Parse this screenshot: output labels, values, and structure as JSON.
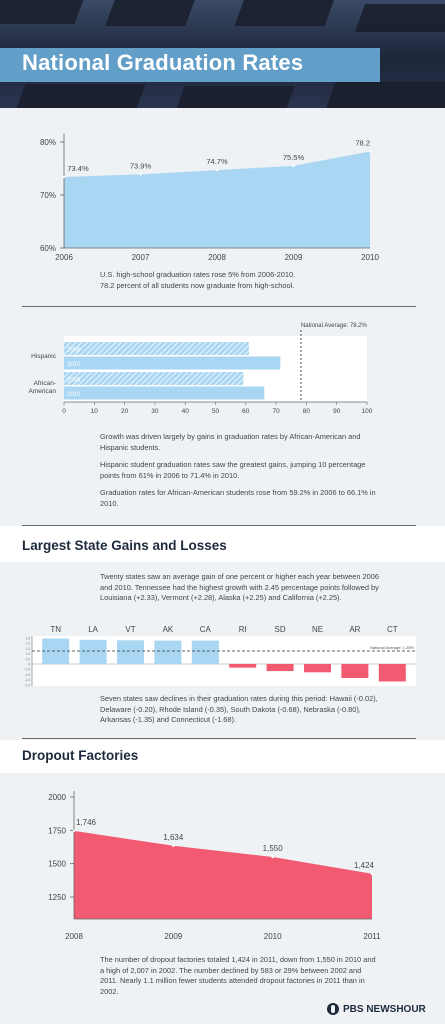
{
  "header": {
    "title": "National Graduation Rates"
  },
  "grad_caption": [
    "U.S. high-school graduation rates rose 5% from 2006-2010.",
    "78.2 percent of all students now graduate from high-school."
  ],
  "group_caption": [
    "Growth was driven largely by gains in graduation rates by African-American and Hispanic students.",
    "Hispanic student graduation rates saw the greatest gains, jumping 10 percentage points from 61% in 2006 to 71.4% in 2010.",
    "Graduation rates for African-American students rose from 59.2% in 2006 to 66.1% in 2010."
  ],
  "state_section": {
    "title": "Largest State Gains and Losses",
    "intro": "Twenty states saw an average gain of one percent or higher each year between 2006 and 2010. Tennessee had the highest growth with 2.45 percentage points followed by Louisiana (+2.33), Vermont (+2.28), Alaska (+2.25) and California (+2.25).",
    "outro": "Seven states saw declines in their graduation rates during this period: Hawaii (-0.02), Delaware (-0.20), Rhode Island (-0.35), South Dakota (-0.68), Nebraska (-0.80), Arkansas (-1.35) and Connecticut (-1.68)."
  },
  "dropout_section": {
    "title": "Dropout Factories",
    "caption": "The number of dropout factories totaled 1,424 in 2011, down from 1,550 in 2010 and a high of 2,007 in 2002. The number declined by 583 or 29% between 2002 and 2011. Nearly 1.1 million fewer students attended dropout factories in 2011 than in 2002."
  },
  "footer": {
    "brand": "PBS NEWSHOUR"
  },
  "colors": {
    "blue": "#a9d6f2",
    "red": "#f25a72",
    "navy": "#1d2a3b",
    "accent": "#e4352c"
  },
  "chart_data": [
    {
      "type": "area",
      "x": [
        2006,
        2007,
        2008,
        2009,
        2010
      ],
      "values": [
        73.4,
        73.9,
        74.7,
        75.5,
        78.2
      ],
      "data_labels": [
        "73.4%",
        "73.9%",
        "74.7%",
        "75.5%",
        "78.2"
      ],
      "yticks": [
        "60%",
        "70%",
        "80%"
      ],
      "ylim": [
        60,
        80
      ]
    },
    {
      "type": "bar",
      "orientation": "horizontal",
      "categories": [
        "Hispanic",
        "African-American"
      ],
      "series": [
        {
          "name": "2006",
          "values": [
            61,
            59.2
          ]
        },
        {
          "name": "2010",
          "values": [
            71.4,
            66.1
          ]
        }
      ],
      "xticks": [
        0,
        10,
        20,
        30,
        40,
        50,
        60,
        70,
        80,
        90,
        100
      ],
      "xlim": [
        0,
        100
      ],
      "reference_label": "National Average: 78.2%",
      "reference_value": 78.2
    },
    {
      "type": "bar",
      "categories": [
        "TN",
        "LA",
        "VT",
        "AK",
        "CA",
        "RI",
        "SD",
        "NE",
        "AR",
        "CT"
      ],
      "values": [
        2.45,
        2.33,
        2.28,
        2.25,
        2.25,
        -0.35,
        -0.68,
        -0.8,
        -1.35,
        -1.68
      ],
      "yticks": [
        "2.5",
        "2.0",
        "1.5",
        "1.0",
        "0.5",
        "0",
        "-0.5",
        "-1.0",
        "-1.5",
        "-2.0"
      ],
      "ylim": [
        -2,
        2.5
      ],
      "reference_label": "National Average: 1.25%",
      "reference_value": 1.25
    },
    {
      "type": "area",
      "x": [
        2008,
        2009,
        2010,
        2011
      ],
      "values": [
        1746,
        1634,
        1550,
        1424
      ],
      "data_labels": [
        "1,746",
        "1,634",
        "1,550",
        "1,424"
      ],
      "yticks": [
        "2000",
        "1750",
        "1500",
        "1250"
      ],
      "ylim": [
        1000,
        2000
      ]
    }
  ]
}
